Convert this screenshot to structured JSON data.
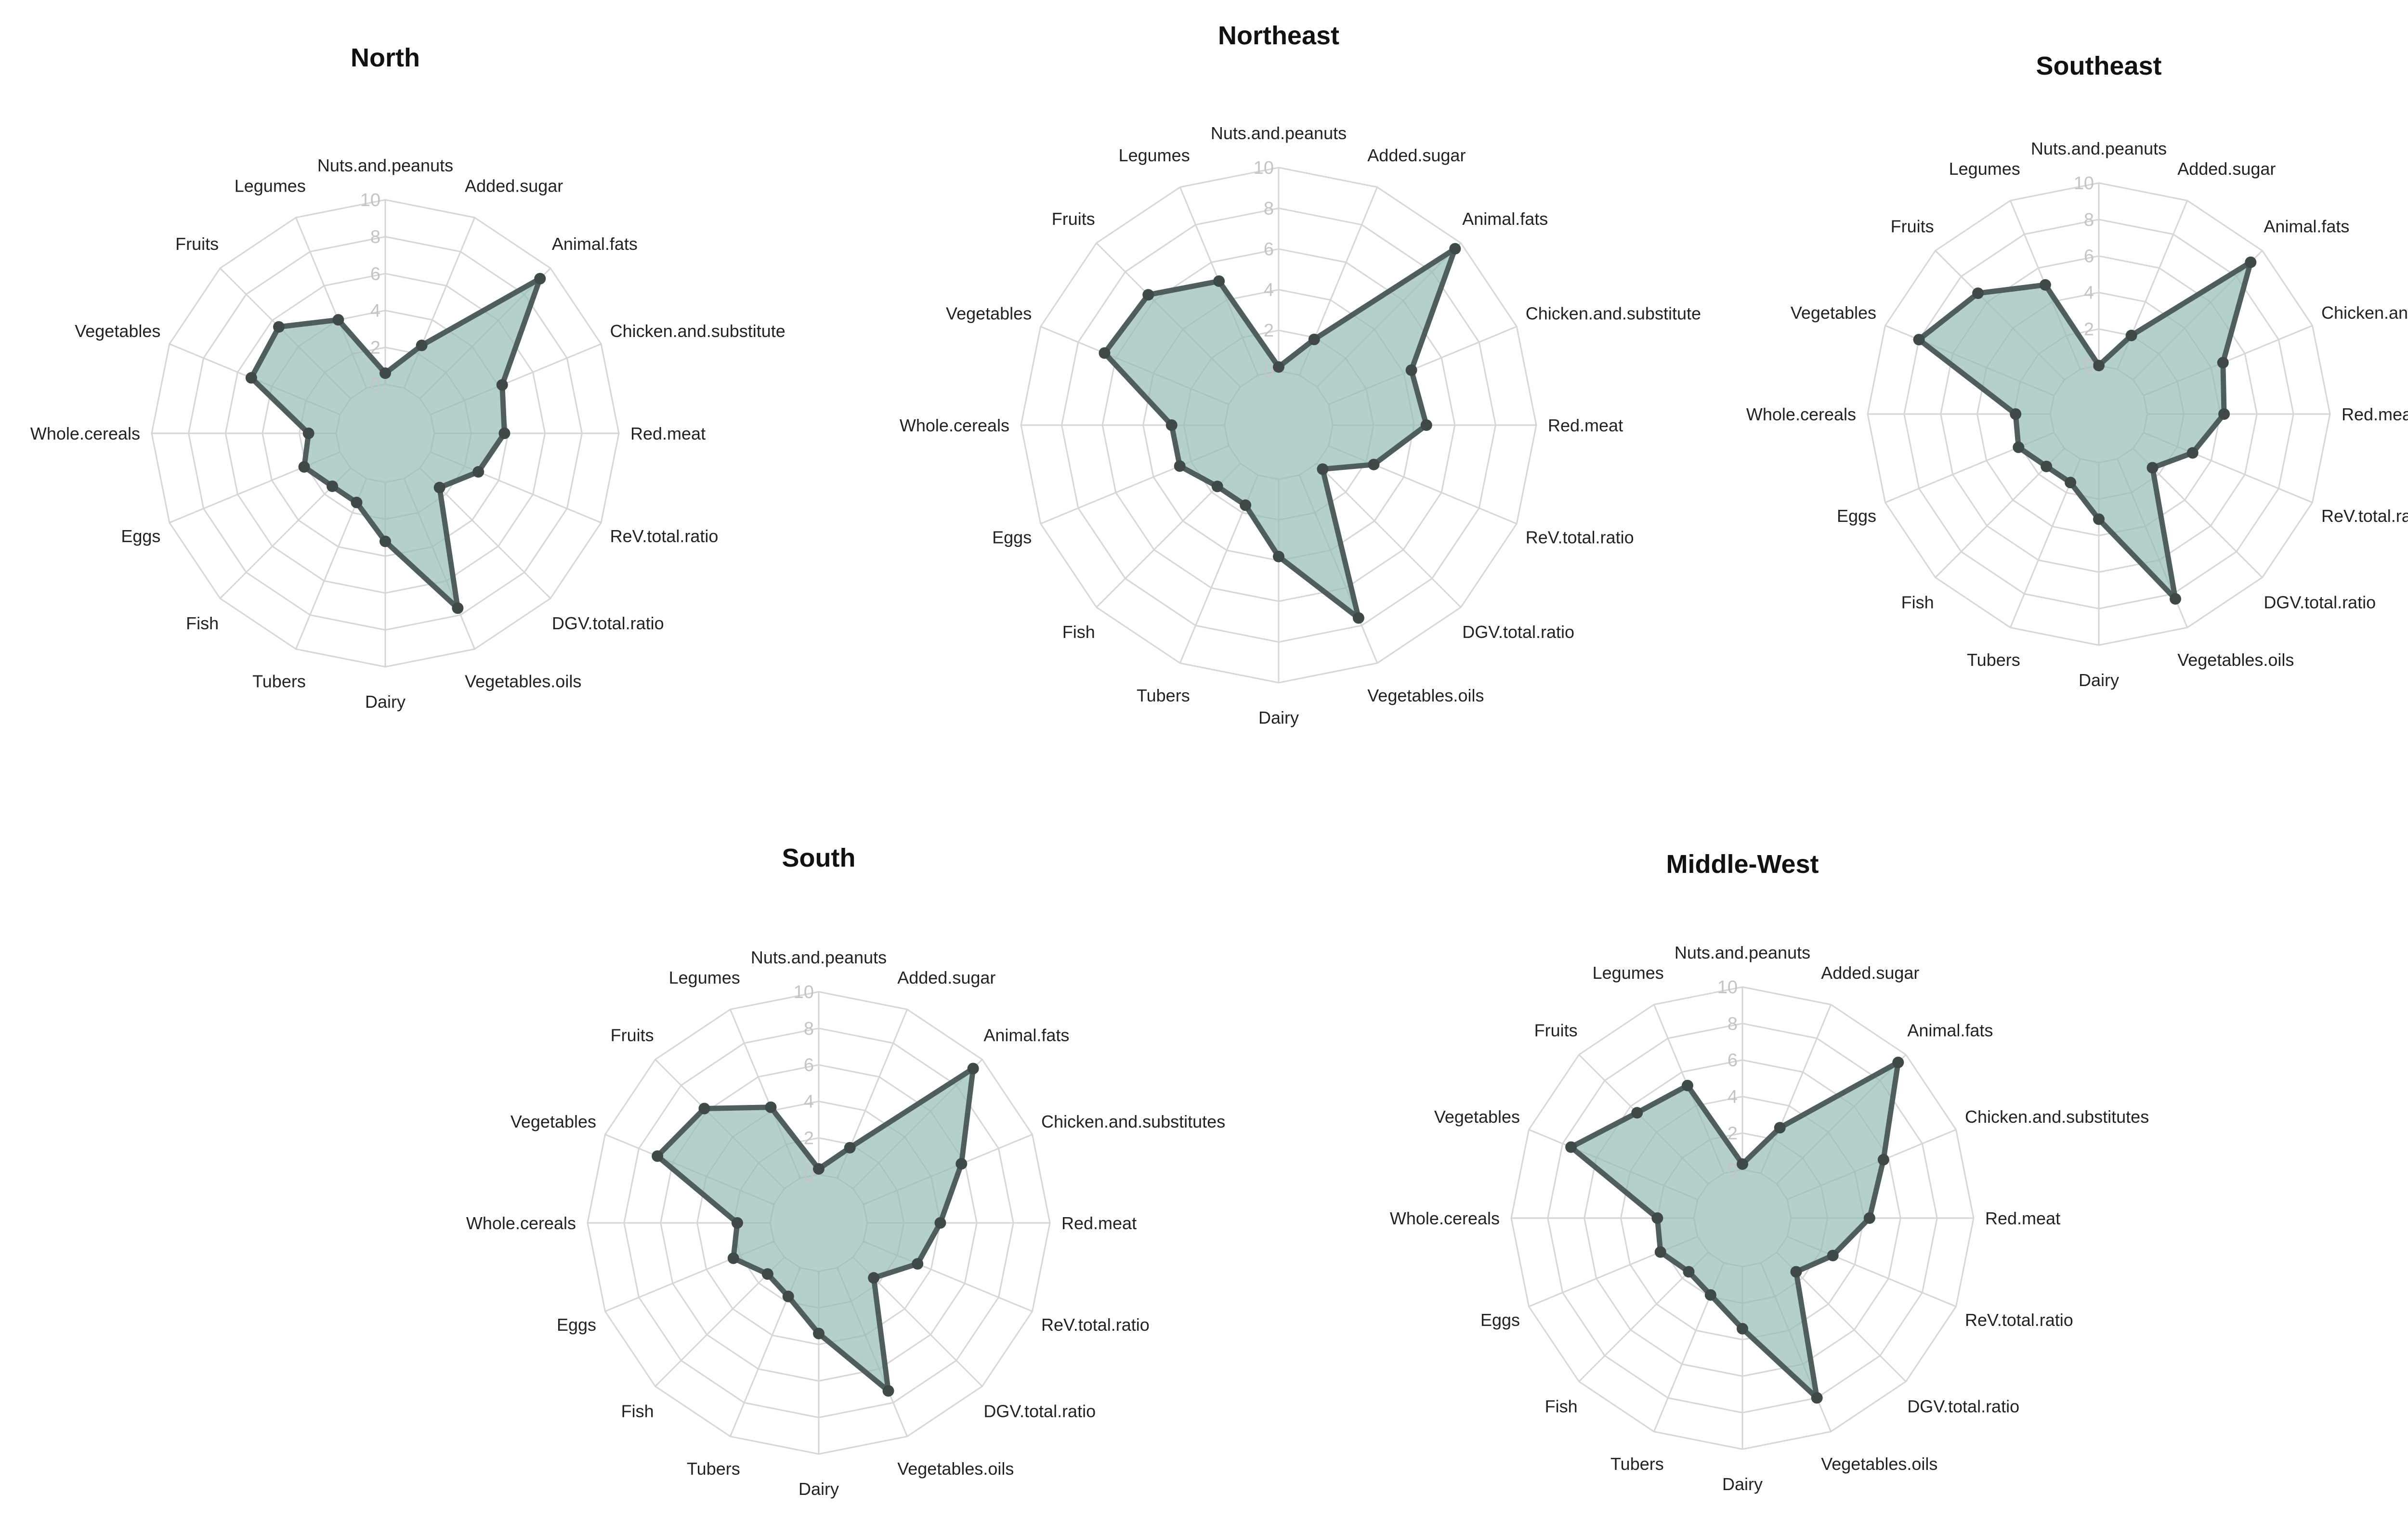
{
  "colors": {
    "fill": "#8fbab6",
    "stroke": "#4f5e5c",
    "point": "#3f4a48"
  },
  "chart_data": [
    {
      "type": "radar",
      "title": "North",
      "axes": [
        "Nuts.and.peanuts",
        "Added.sugar",
        "Animal.fats",
        "Chicken.and.substitute",
        "Red.meat",
        "ReV.total.ratio",
        "DGV.total.ratio",
        "Vegetables.oils",
        "Dairy",
        "Tubers",
        "Fish",
        "Eggs",
        "Whole.cereals",
        "Vegetables",
        "Fruits",
        "Legumes"
      ],
      "ticks": [
        "0",
        "2",
        "4",
        "6",
        "8",
        "10"
      ],
      "rlim": [
        0,
        10
      ],
      "values": [
        0.6,
        2.5,
        9.2,
        4.2,
        3.8,
        2.8,
        1.5,
        7.6,
        3.2,
        1.4,
        1.4,
        2.1,
        1.5,
        5.2,
        5.5,
        4.0
      ]
    },
    {
      "type": "radar",
      "title": "Northeast",
      "axes": [
        "Nuts.and.peanuts",
        "Added.sugar",
        "Animal.fats",
        "Chicken.and.substitute",
        "Red.meat",
        "ReV.total.ratio",
        "DGV.total.ratio",
        "Vegetables.oils",
        "Dairy",
        "Tubers",
        "Fish",
        "Eggs",
        "Whole.cereals",
        "Vegetables",
        "Fruits",
        "Legumes"
      ],
      "ticks": [
        "0",
        "2",
        "4",
        "6",
        "8",
        "10"
      ],
      "rlim": [
        0,
        10
      ],
      "values": [
        0.2,
        1.9,
        9.6,
        4.4,
        4.6,
        2.4,
        0.4,
        7.6,
        3.8,
        1.6,
        1.6,
        2.6,
        2.6,
        6.6,
        6.4,
        5.0
      ]
    },
    {
      "type": "radar",
      "title": "Southeast",
      "axes": [
        "Nuts.and.peanuts",
        "Added.sugar",
        "Animal.fats",
        "Chicken.and.substitutes",
        "Red.meat",
        "ReV.total.ratio",
        "DGV.total.ratio",
        "Vegetables.oils",
        "Dairy",
        "Tubers",
        "Fish",
        "Eggs",
        "Whole.cereals",
        "Vegetables",
        "Fruits",
        "Legumes"
      ],
      "ticks": [
        "0",
        "2",
        "4",
        "6",
        "8",
        "10"
      ],
      "rlim": [
        0,
        10
      ],
      "values": [
        0.0,
        2.0,
        9.1,
        4.7,
        4.2,
        2.9,
        1.5,
        8.3,
        3.1,
        1.4,
        1.4,
        2.1,
        1.9,
        8.0,
        6.7,
        5.0
      ]
    },
    {
      "type": "radar",
      "title": "South",
      "axes": [
        "Nuts.and.peanuts",
        "Added.sugar",
        "Animal.fats",
        "Chicken.and.substitutes",
        "Red.meat",
        "ReV.total.ratio",
        "DGV.total.ratio",
        "Vegetables.oils",
        "Dairy",
        "Tubers",
        "Fish",
        "Eggs",
        "Whole.cereals",
        "Vegetables",
        "Fruits",
        "Legumes"
      ],
      "ticks": [
        "0",
        "2",
        "4",
        "6",
        "8",
        "10"
      ],
      "rlim": [
        0,
        10
      ],
      "values": [
        0.3,
        1.8,
        9.3,
        5.8,
        4.0,
        3.2,
        1.6,
        7.3,
        3.4,
        1.7,
        1.3,
        2.4,
        1.8,
        6.9,
        6.2,
        4.2
      ]
    },
    {
      "type": "radar",
      "title": "Middle-West",
      "axes": [
        "Nuts.and.peanuts",
        "Added.sugar",
        "Animal.fats",
        "Chicken.and.substitutes",
        "Red.meat",
        "ReV.total.ratio",
        "DGV.total.ratio",
        "Vegetables.oils",
        "Dairy",
        "Tubers",
        "Fish",
        "Eggs",
        "Whole.cereals",
        "Vegetables",
        "Fruits",
        "Legumes"
      ],
      "ticks": [
        "0",
        "2",
        "4",
        "6",
        "8",
        "10"
      ],
      "rlim": [
        0,
        10
      ],
      "values": [
        0.3,
        2.7,
        9.4,
        5.7,
        4.3,
        2.7,
        1.5,
        8.0,
        3.4,
        1.9,
        1.5,
        2.2,
        2.0,
        7.5,
        5.5,
        5.2
      ]
    }
  ]
}
